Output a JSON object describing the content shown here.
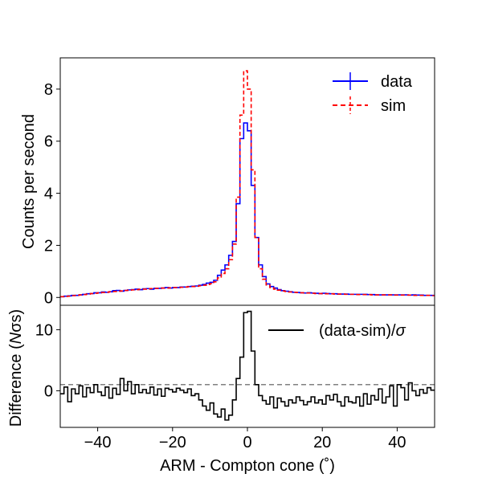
{
  "chart_data": [
    {
      "type": "line",
      "panel": "top",
      "ylabel": "Counts per second",
      "xlim": [
        -50,
        50
      ],
      "ylim": [
        -0.3,
        9.2
      ],
      "yticks": [
        0,
        2,
        4,
        6,
        8
      ],
      "ytick_labels": [
        "0",
        "2",
        "4",
        "6",
        "8"
      ],
      "legend_position": "top-right",
      "bin_width": 1,
      "x": [
        -50,
        -49,
        -48,
        -47,
        -46,
        -45,
        -44,
        -43,
        -42,
        -41,
        -40,
        -39,
        -38,
        -37,
        -36,
        -35,
        -34,
        -33,
        -32,
        -31,
        -30,
        -29,
        -28,
        -27,
        -26,
        -25,
        -24,
        -23,
        -22,
        -21,
        -20,
        -19,
        -18,
        -17,
        -16,
        -15,
        -14,
        -13,
        -12,
        -11,
        -10,
        -9,
        -8,
        -7,
        -6,
        -5,
        -4,
        -3,
        -2,
        -1,
        0,
        1,
        2,
        3,
        4,
        5,
        6,
        7,
        8,
        9,
        10,
        11,
        12,
        13,
        14,
        15,
        16,
        17,
        18,
        19,
        20,
        21,
        22,
        23,
        24,
        25,
        26,
        27,
        28,
        29,
        30,
        31,
        32,
        33,
        34,
        35,
        36,
        37,
        38,
        39,
        40,
        41,
        42,
        43,
        44,
        45,
        46,
        47,
        48,
        49
      ],
      "series": [
        {
          "name": "data",
          "color": "#0000ff",
          "dash": "solid",
          "values": [
            0.03,
            0.05,
            0.06,
            0.08,
            0.08,
            0.1,
            0.12,
            0.14,
            0.15,
            0.18,
            0.18,
            0.21,
            0.2,
            0.22,
            0.26,
            0.27,
            0.24,
            0.27,
            0.29,
            0.3,
            0.32,
            0.3,
            0.33,
            0.34,
            0.32,
            0.35,
            0.35,
            0.36,
            0.38,
            0.36,
            0.38,
            0.38,
            0.4,
            0.4,
            0.42,
            0.43,
            0.44,
            0.47,
            0.5,
            0.55,
            0.58,
            0.66,
            0.85,
            1.05,
            1.25,
            1.62,
            2.15,
            3.6,
            6.1,
            6.7,
            6.4,
            4.3,
            2.3,
            1.25,
            0.8,
            0.52,
            0.42,
            0.36,
            0.3,
            0.26,
            0.24,
            0.22,
            0.2,
            0.19,
            0.18,
            0.17,
            0.18,
            0.17,
            0.16,
            0.15,
            0.16,
            0.15,
            0.14,
            0.14,
            0.13,
            0.13,
            0.13,
            0.12,
            0.12,
            0.12,
            0.12,
            0.12,
            0.11,
            0.11,
            0.1,
            0.1,
            0.1,
            0.1,
            0.1,
            0.1,
            0.1,
            0.1,
            0.1,
            0.09,
            0.1,
            0.09,
            0.09,
            0.08,
            0.08,
            0.08
          ]
        },
        {
          "name": "sim",
          "color": "#ff0000",
          "dash": "dashed",
          "values": [
            0.03,
            0.04,
            0.05,
            0.07,
            0.08,
            0.1,
            0.11,
            0.13,
            0.15,
            0.16,
            0.18,
            0.19,
            0.2,
            0.22,
            0.23,
            0.24,
            0.25,
            0.27,
            0.28,
            0.29,
            0.3,
            0.31,
            0.32,
            0.33,
            0.34,
            0.35,
            0.35,
            0.36,
            0.36,
            0.37,
            0.38,
            0.38,
            0.39,
            0.4,
            0.41,
            0.42,
            0.43,
            0.45,
            0.47,
            0.5,
            0.53,
            0.6,
            0.75,
            0.92,
            1.1,
            1.45,
            2.05,
            3.85,
            7.0,
            8.7,
            8.0,
            4.9,
            2.3,
            1.1,
            0.7,
            0.48,
            0.38,
            0.32,
            0.28,
            0.25,
            0.23,
            0.21,
            0.2,
            0.19,
            0.18,
            0.17,
            0.17,
            0.16,
            0.15,
            0.15,
            0.14,
            0.14,
            0.14,
            0.13,
            0.13,
            0.13,
            0.12,
            0.12,
            0.12,
            0.11,
            0.11,
            0.11,
            0.11,
            0.1,
            0.1,
            0.1,
            0.1,
            0.1,
            0.1,
            0.09,
            0.09,
            0.09,
            0.09,
            0.09,
            0.08,
            0.08,
            0.08,
            0.08,
            0.08,
            0.07
          ]
        }
      ]
    },
    {
      "type": "line",
      "panel": "bottom",
      "xlabel": "ARM - Compton cone (˚)",
      "ylabel": "Difference (Nσs)",
      "xlim": [
        -50,
        50
      ],
      "ylim": [
        -6,
        14
      ],
      "xticks": [
        -40,
        -20,
        0,
        20,
        40
      ],
      "xtick_labels": [
        "−40",
        "−20",
        "0",
        "20",
        "40"
      ],
      "yticks": [
        0,
        10
      ],
      "ytick_labels": [
        "0",
        "10"
      ],
      "reference_line": {
        "y": 1,
        "color": "#808080",
        "dash": "dashed"
      },
      "legend_position": "top-right",
      "bin_width": 1,
      "x": [
        -50,
        -49,
        -48,
        -47,
        -46,
        -45,
        -44,
        -43,
        -42,
        -41,
        -40,
        -39,
        -38,
        -37,
        -36,
        -35,
        -34,
        -33,
        -32,
        -31,
        -30,
        -29,
        -28,
        -27,
        -26,
        -25,
        -24,
        -23,
        -22,
        -21,
        -20,
        -19,
        -18,
        -17,
        -16,
        -15,
        -14,
        -13,
        -12,
        -11,
        -10,
        -9,
        -8,
        -7,
        -6,
        -5,
        -4,
        -3,
        -2,
        -1,
        0,
        1,
        2,
        3,
        4,
        5,
        6,
        7,
        8,
        9,
        10,
        11,
        12,
        13,
        14,
        15,
        16,
        17,
        18,
        19,
        20,
        21,
        22,
        23,
        24,
        25,
        26,
        27,
        28,
        29,
        30,
        31,
        32,
        33,
        34,
        35,
        36,
        37,
        38,
        39,
        40,
        41,
        42,
        43,
        44,
        45,
        46,
        47,
        48,
        49
      ],
      "series": [
        {
          "name": "(data-sim)/σ",
          "color": "#000000",
          "dash": "solid",
          "values": [
            -0.5,
            0.6,
            -1.8,
            0.3,
            -0.5,
            0.8,
            -1.0,
            0.5,
            -0.3,
            1.0,
            -0.2,
            -0.8,
            0.6,
            -1.2,
            0.4,
            -0.6,
            2.0,
            0.0,
            1.5,
            -0.5,
            1.0,
            -0.3,
            0.2,
            -0.4,
            0.6,
            -0.7,
            0.3,
            -0.9,
            0.4,
            0.2,
            -0.2,
            0.4,
            0.1,
            -0.3,
            0.3,
            -0.8,
            -0.5,
            -1.5,
            -2.5,
            -3.2,
            -2.0,
            -3.8,
            -4.3,
            -3.0,
            -4.8,
            -4.0,
            -1.5,
            2.0,
            5.5,
            12.8,
            13.0,
            6.5,
            1.0,
            -0.8,
            -1.6,
            -2.2,
            -1.0,
            -2.8,
            -1.2,
            -1.8,
            -2.5,
            -1.5,
            -2.0,
            -1.0,
            -1.6,
            -2.3,
            -1.8,
            -1.0,
            -2.0,
            -1.5,
            -2.2,
            -0.8,
            -1.5,
            -0.6,
            -1.8,
            -2.5,
            -1.0,
            -1.8,
            -2.0,
            -1.0,
            -2.5,
            -0.5,
            -2.2,
            -0.8,
            -1.5,
            0.3,
            -2.0,
            -1.0,
            0.8,
            -2.5,
            1.0,
            0.5,
            -1.5,
            1.3,
            0.0,
            -0.8,
            0.2,
            -0.4,
            0.5,
            0.1
          ]
        }
      ]
    }
  ],
  "legend": {
    "top": [
      {
        "label": "data"
      },
      {
        "label": "sim"
      }
    ],
    "bottom": [
      {
        "label": "(data-sim)/σ"
      }
    ]
  }
}
